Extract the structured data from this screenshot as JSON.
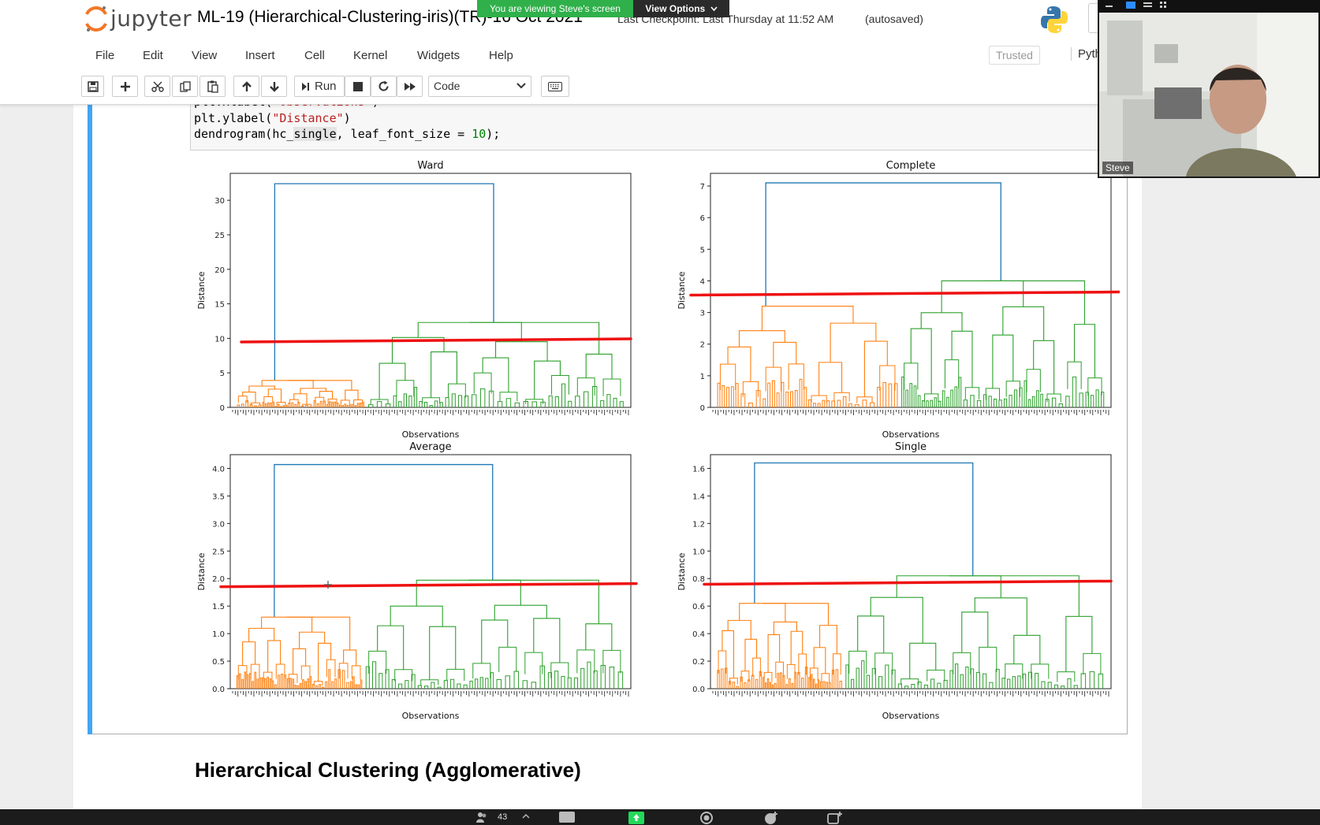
{
  "app": {
    "logo_text": "jupyter",
    "notebook_title": "ML-19 (Hierarchical-Clustering-iris)(TR)-16 Oct 2021",
    "checkpoint": "Last Checkpoint: Last Thursday at 11:52 AM",
    "autosave_status": "(autosaved)"
  },
  "menu": [
    "File",
    "Edit",
    "View",
    "Insert",
    "Cell",
    "Kernel",
    "Widgets",
    "Help"
  ],
  "trusted_label": "Trusted",
  "kernel_label": "Pyth",
  "toolbar": {
    "run_label": "Run",
    "cell_type": "Code"
  },
  "share_banner": {
    "viewing": "You are viewing Steve's screen",
    "options": "View Options"
  },
  "code": {
    "line1_prefix": "plt.xlabel(",
    "line1_string": "\"Observations\"",
    "line1_suffix": ")",
    "line2_prefix": "plt.ylabel(",
    "line2_string": "\"Distance\"",
    "line2_suffix": ")",
    "line3_a": "dendrogram(hc_",
    "line3_hl": "single",
    "line3_b": ", leaf_font_size = ",
    "line3_num": "10",
    "line3_c": ");"
  },
  "chart_data": [
    {
      "type": "dendrogram",
      "title": "Ward",
      "xlabel": "Observations",
      "ylabel": "Distance",
      "yticks": [
        0,
        5,
        10,
        15,
        20,
        25,
        30
      ],
      "ylim": [
        0,
        33.9
      ],
      "root_height": 32.4,
      "merges": [
        {
          "name": "orange",
          "height": 3.9
        },
        {
          "name": "green",
          "height": 12.3
        }
      ],
      "cut_line_height": 9.7
    },
    {
      "type": "dendrogram",
      "title": "Complete",
      "xlabel": "Observations",
      "ylabel": "Distance",
      "yticks": [
        0,
        1,
        2,
        3,
        4,
        5,
        6,
        7
      ],
      "ylim": [
        0,
        7.4
      ],
      "root_height": 7.1,
      "merges": [
        {
          "name": "orange",
          "height": 3.2
        },
        {
          "name": "green",
          "height": 4.0
        }
      ],
      "cut_line_height": 3.6
    },
    {
      "type": "dendrogram",
      "title": "Average",
      "xlabel": "Observations",
      "ylabel": "Distance",
      "yticks": [
        "0.0",
        "0.5",
        "1.0",
        "1.5",
        "2.0",
        "2.5",
        "3.0",
        "3.5",
        "4.0"
      ],
      "ylim": [
        0,
        4.25
      ],
      "root_height": 4.07,
      "merges": [
        {
          "name": "orange",
          "height": 1.3
        },
        {
          "name": "green",
          "height": 1.97
        }
      ],
      "cut_line_height": 1.88
    },
    {
      "type": "dendrogram",
      "title": "Single",
      "xlabel": "Observations",
      "ylabel": "Distance",
      "yticks": [
        "0.0",
        "0.2",
        "0.4",
        "0.6",
        "0.8",
        "1.0",
        "1.2",
        "1.4",
        "1.6"
      ],
      "ylim": [
        0,
        1.7
      ],
      "root_height": 1.64,
      "merges": [
        {
          "name": "orange",
          "height": 0.62
        },
        {
          "name": "green",
          "height": 0.82
        }
      ],
      "cut_line_height": 0.77
    }
  ],
  "colors": {
    "link_blue": "#1f77b4",
    "cluster_orange": "#ff7f0e",
    "cluster_green": "#2ca02c",
    "cut_line_red": "#ee1111",
    "cell_bar": "#42a5f5"
  },
  "section_heading": "Hierarchical Clustering (Agglomerative)",
  "video": {
    "participant_name": "Steve"
  },
  "taskbar": {
    "participants": "43"
  }
}
